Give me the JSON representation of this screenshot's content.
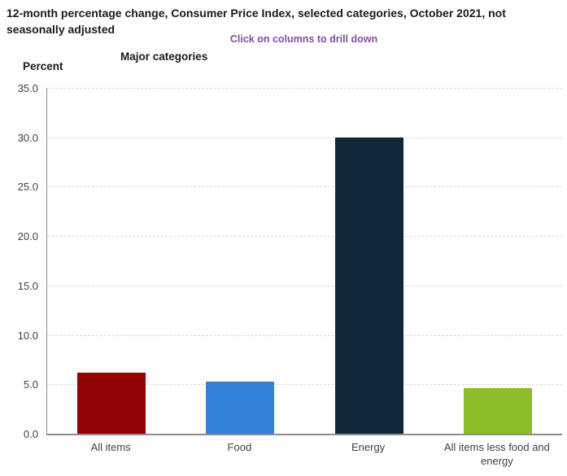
{
  "header": {
    "title": "12-month percentage change, Consumer Price Index, selected categories, October 2021, not seasonally adjusted",
    "drill_hint": "Click on columns to drill down",
    "group_label": "Major categories",
    "unit_label": "Percent"
  },
  "colors": {
    "title_text": "#1a1a1a",
    "drill_hint_text": "#7b4fa2",
    "axis_line": "#8c8c8c",
    "gridline": "#d9d9d9",
    "tick_text": "#404040"
  },
  "chart_data": {
    "type": "bar",
    "title": "12-month percentage change, Consumer Price Index, selected categories, October 2021, not seasonally adjusted",
    "subtitle": "Click on columns to drill down",
    "xlabel": "Major categories",
    "ylabel": "Percent",
    "categories": [
      "All items",
      "Food",
      "Energy",
      "All items less food and energy"
    ],
    "values": [
      6.2,
      5.3,
      30.0,
      4.6
    ],
    "bar_colors": [
      "#8f0303",
      "#3380db",
      "#12263a",
      "#8cbe29"
    ],
    "ylim": [
      0,
      35
    ],
    "yticks": [
      0,
      5,
      10,
      15,
      20,
      25,
      30,
      35
    ],
    "ytick_labels": [
      "0.0",
      "5.0",
      "10.0",
      "15.0",
      "20.0",
      "25.0",
      "30.0",
      "35.0"
    ],
    "grid": "horizontal-dashed",
    "legend": "none",
    "bars_clickable": true
  }
}
